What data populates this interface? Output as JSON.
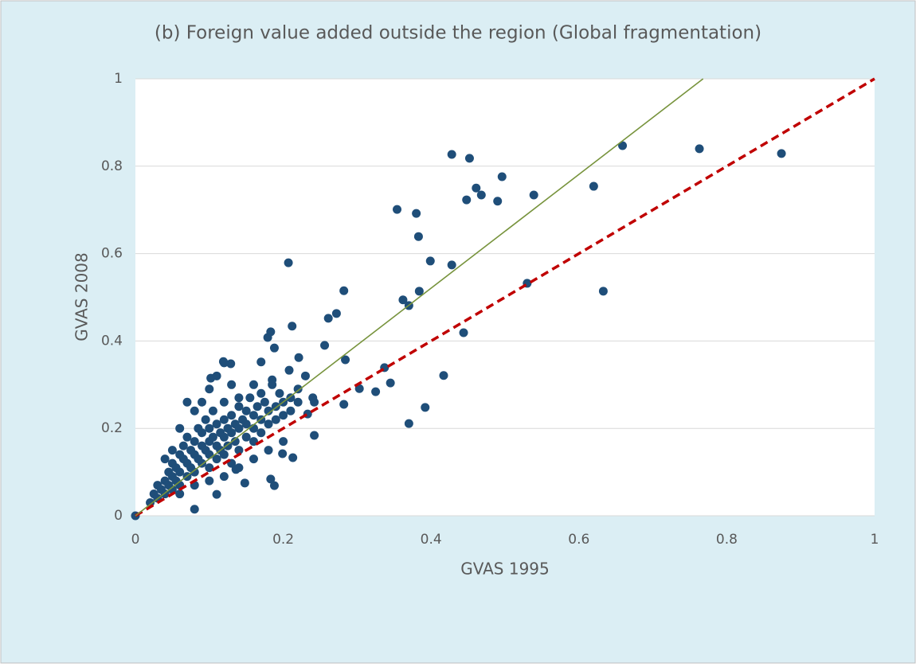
{
  "chart_data": {
    "type": "scatter",
    "title": "(b) Foreign value added outside the region (Global fragmentation)",
    "xlabel": "GVAS 1995",
    "ylabel": "GVAS 2008",
    "color": "#1f4e79",
    "xlim": [
      0,
      1
    ],
    "ylim": [
      0,
      1
    ],
    "xticks": [
      0,
      0.2,
      0.4,
      0.6,
      0.8,
      1
    ],
    "yticks": [
      0,
      0.2,
      0.4,
      0.6,
      0.8,
      1
    ],
    "grid": true,
    "lines": [
      {
        "color": "#c00000",
        "dashed": true,
        "x": [
          0,
          1
        ],
        "y": [
          0,
          1
        ]
      },
      {
        "color": "#77933c",
        "dashed": false,
        "x": [
          0,
          0.768
        ],
        "y": [
          0,
          1
        ]
      }
    ],
    "x": [
      0.874,
      0.763,
      0.659,
      0.62,
      0.633,
      0.53,
      0.539,
      0.496,
      0.49,
      0.468,
      0.461,
      0.448,
      0.452,
      0.428,
      0.428,
      0.444,
      0.417,
      0.392,
      0.37,
      0.399,
      0.383,
      0.38,
      0.354,
      0.384,
      0.37,
      0.362,
      0.207,
      0.282,
      0.272,
      0.261,
      0.256,
      0.212,
      0.183,
      0.179,
      0.188,
      0.221,
      0.345,
      0.337,
      0.325,
      0.303,
      0.284,
      0.282,
      0.242,
      0.213,
      0.188,
      0.183,
      0.148,
      0.08,
      0.11,
      0,
      0.208,
      0.185,
      0.17,
      0.129,
      0.102,
      0.119,
      0.242,
      0.233,
      0.199,
      0.136,
      0.02,
      0.025,
      0.03,
      0.03,
      0.035,
      0.04,
      0.04,
      0.045,
      0.045,
      0.05,
      0.05,
      0.05,
      0.055,
      0.055,
      0.06,
      0.06,
      0.06,
      0.065,
      0.065,
      0.07,
      0.07,
      0.07,
      0.075,
      0.075,
      0.08,
      0.08,
      0.08,
      0.085,
      0.085,
      0.09,
      0.09,
      0.09,
      0.095,
      0.095,
      0.1,
      0.1,
      0.1,
      0.1,
      0.105,
      0.105,
      0.11,
      0.11,
      0.11,
      0.115,
      0.115,
      0.12,
      0.12,
      0.12,
      0.12,
      0.125,
      0.125,
      0.13,
      0.13,
      0.13,
      0.135,
      0.135,
      0.14,
      0.14,
      0.14,
      0.145,
      0.15,
      0.15,
      0.15,
      0.155,
      0.16,
      0.16,
      0.16,
      0.165,
      0.17,
      0.17,
      0.175,
      0.18,
      0.18,
      0.185,
      0.19,
      0.19,
      0.195,
      0.2,
      0.2,
      0.21,
      0.21,
      0.22,
      0.22,
      0.23,
      0.24,
      0.06,
      0.07,
      0.08,
      0.09,
      0.1,
      0.11,
      0.12,
      0.13,
      0.14,
      0.16,
      0.17,
      0.05,
      0.04,
      0.06,
      0.08,
      0.1,
      0.12,
      0.14,
      0.16,
      0.18,
      0.2
    ],
    "y": [
      0.829,
      0.84,
      0.847,
      0.754,
      0.514,
      0.532,
      0.734,
      0.776,
      0.72,
      0.734,
      0.75,
      0.723,
      0.818,
      0.827,
      0.574,
      0.419,
      0.321,
      0.248,
      0.211,
      0.583,
      0.639,
      0.692,
      0.701,
      0.514,
      0.481,
      0.494,
      0.579,
      0.515,
      0.463,
      0.452,
      0.39,
      0.434,
      0.421,
      0.408,
      0.384,
      0.362,
      0.304,
      0.339,
      0.284,
      0.291,
      0.357,
      0.255,
      0.184,
      0.133,
      0.069,
      0.084,
      0.075,
      0.015,
      0.049,
      0,
      0.333,
      0.311,
      0.352,
      0.348,
      0.315,
      0.353,
      0.26,
      0.233,
      0.142,
      0.106,
      0.03,
      0.05,
      0.07,
      0.04,
      0.06,
      0.08,
      0.05,
      0.1,
      0.07,
      0.12,
      0.09,
      0.06,
      0.11,
      0.08,
      0.14,
      0.1,
      0.07,
      0.13,
      0.16,
      0.12,
      0.09,
      0.18,
      0.15,
      0.11,
      0.14,
      0.17,
      0.1,
      0.2,
      0.13,
      0.16,
      0.12,
      0.19,
      0.15,
      0.22,
      0.17,
      0.14,
      0.2,
      0.11,
      0.18,
      0.24,
      0.16,
      0.21,
      0.13,
      0.19,
      0.15,
      0.18,
      0.22,
      0.14,
      0.26,
      0.2,
      0.16,
      0.19,
      0.23,
      0.12,
      0.21,
      0.17,
      0.2,
      0.25,
      0.15,
      0.22,
      0.18,
      0.24,
      0.21,
      0.27,
      0.2,
      0.23,
      0.17,
      0.25,
      0.22,
      0.19,
      0.26,
      0.24,
      0.21,
      0.3,
      0.25,
      0.22,
      0.28,
      0.26,
      0.23,
      0.27,
      0.24,
      0.29,
      0.26,
      0.32,
      0.27,
      0.2,
      0.26,
      0.24,
      0.26,
      0.29,
      0.32,
      0.35,
      0.3,
      0.27,
      0.3,
      0.28,
      0.15,
      0.13,
      0.05,
      0.07,
      0.08,
      0.09,
      0.11,
      0.13,
      0.15,
      0.17
    ]
  }
}
